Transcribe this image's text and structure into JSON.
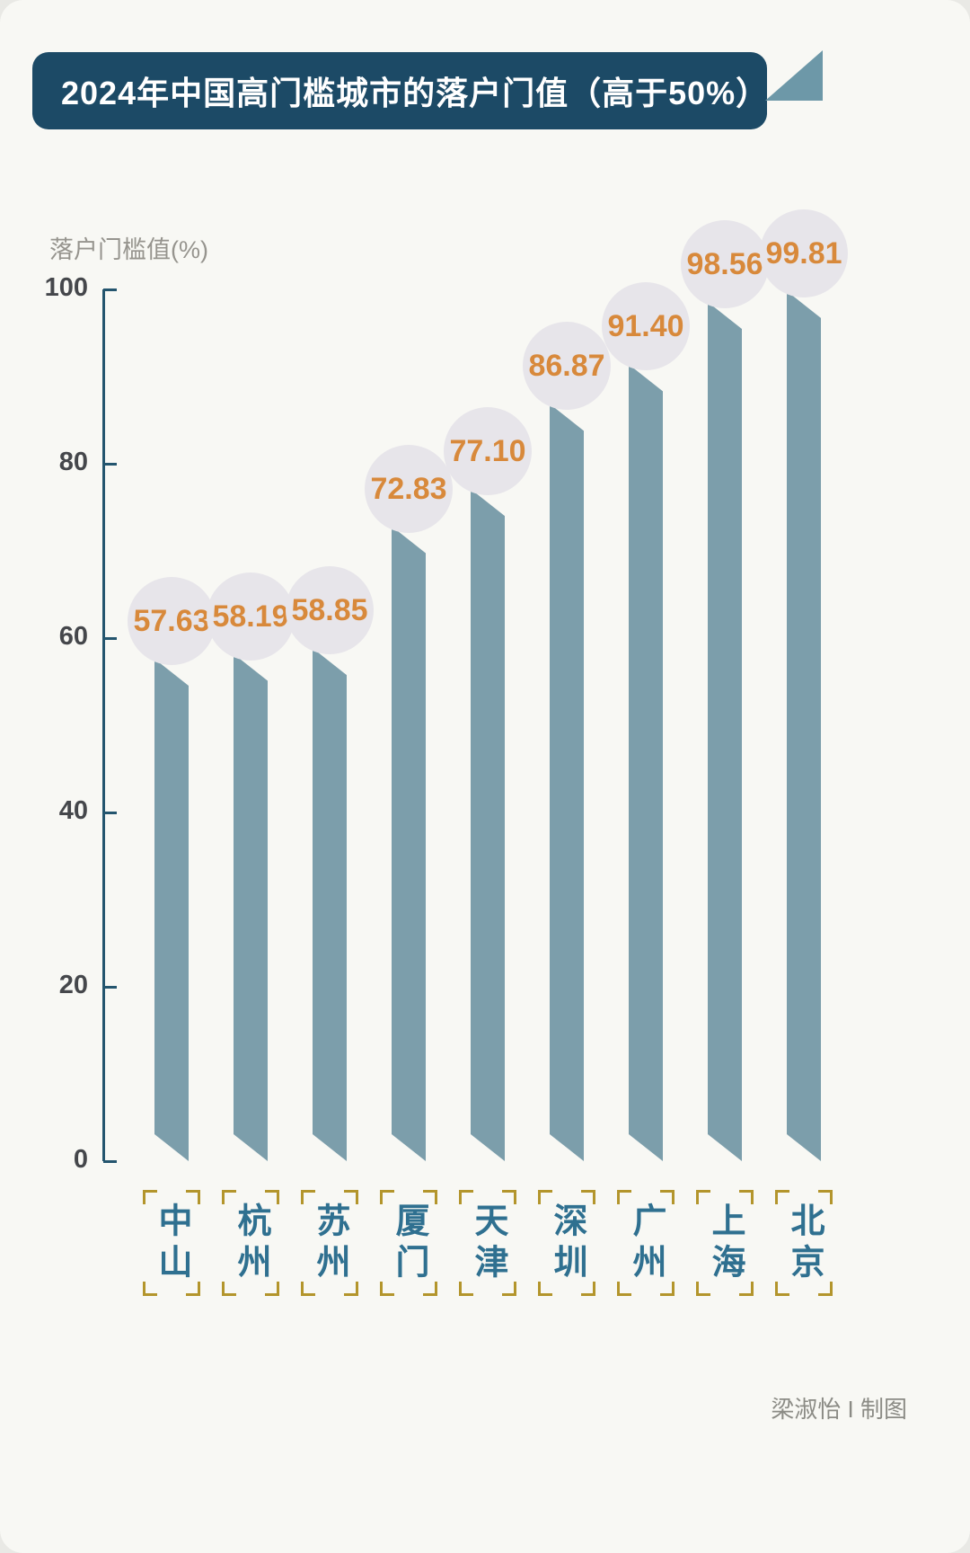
{
  "header": {
    "title": "2024年中国高门槛城市的落户门值（高于50%）"
  },
  "chart_data": {
    "type": "bar",
    "title": "2024年中国高门槛城市的落户门值（高于50%）",
    "ylabel": "落户门槛值(%)",
    "xlabel": "",
    "ylim": [
      0,
      100
    ],
    "yticks": [
      0,
      20,
      40,
      60,
      80,
      100
    ],
    "grid": false,
    "legend": false,
    "categories": [
      "中山",
      "杭州",
      "苏州",
      "厦门",
      "天津",
      "深圳",
      "广州",
      "上海",
      "北京"
    ],
    "values": [
      57.63,
      58.19,
      58.85,
      72.83,
      77.1,
      86.87,
      91.4,
      98.56,
      99.81
    ],
    "value_labels": [
      "57.63",
      "58.19",
      "58.85",
      "72.83",
      "77.10",
      "86.87",
      "91.40",
      "98.56",
      "99.81"
    ],
    "bar_color": "#7C9EAB",
    "value_color": "#D8893B",
    "category_color": "#2F7090",
    "bracket_color": "#B3952C",
    "circle_color": "#E7E5EA",
    "axis_color": "#24556E",
    "header_color": "#1C4A66"
  },
  "footer": {
    "credit": "梁淑怡 I 制图"
  }
}
